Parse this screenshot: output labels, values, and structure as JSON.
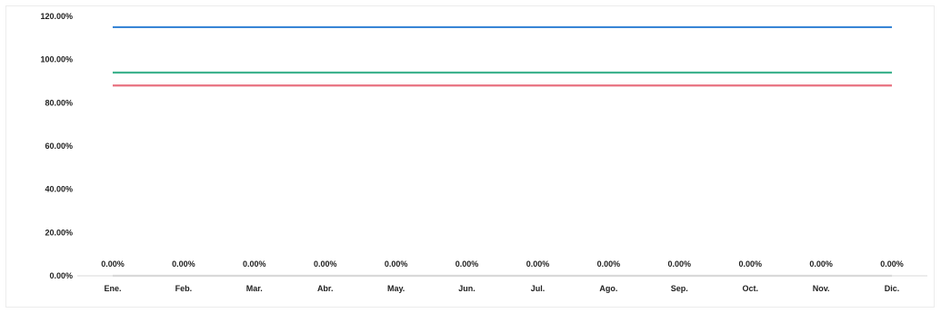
{
  "chart_data": {
    "type": "line",
    "title": "",
    "xlabel": "",
    "ylabel": "",
    "categories": [
      "Ene.",
      "Feb.",
      "Mar.",
      "Abr.",
      "May.",
      "Jun.",
      "Jul.",
      "Ago.",
      "Sep.",
      "Oct.",
      "Nov.",
      "Dic."
    ],
    "y_ticks": [
      "0.00%",
      "20.00%",
      "40.00%",
      "60.00%",
      "80.00%",
      "100.00%",
      "120.00%"
    ],
    "ylim": [
      0,
      120
    ],
    "grid": false,
    "legend": "none",
    "series": [
      {
        "color": "#3a86d6",
        "values": [
          115,
          115,
          115,
          115,
          115,
          115,
          115,
          115,
          115,
          115,
          115,
          115
        ]
      },
      {
        "color": "#3fb28e",
        "values": [
          94,
          94,
          94,
          94,
          94,
          94,
          94,
          94,
          94,
          94,
          94,
          94
        ]
      },
      {
        "color": "#e8707f",
        "values": [
          88,
          88,
          88,
          88,
          88,
          88,
          88,
          88,
          88,
          88,
          88,
          88
        ]
      },
      {
        "color": "#d9d9d9",
        "values": [
          0,
          0,
          0,
          0,
          0,
          0,
          0,
          0,
          0,
          0,
          0,
          0
        ],
        "data_labels": [
          "0.00%",
          "0.00%",
          "0.00%",
          "0.00%",
          "0.00%",
          "0.00%",
          "0.00%",
          "0.00%",
          "0.00%",
          "0.00%",
          "0.00%",
          "0.00%"
        ]
      }
    ]
  }
}
